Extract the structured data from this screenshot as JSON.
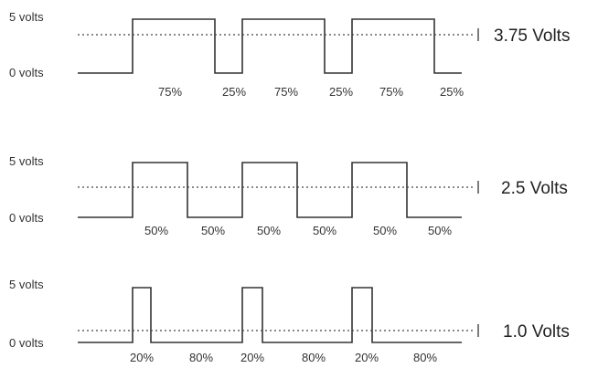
{
  "waveforms": [
    {
      "high_label": "5 volts",
      "low_label": "0 volts",
      "duty_cycle": 0.75,
      "pulses": 3,
      "average_label": "3.75 Volts",
      "percent_labels": [
        "75%",
        "25%",
        "75%",
        "25%",
        "75%",
        "25%"
      ]
    },
    {
      "high_label": "5 volts",
      "low_label": "0 volts",
      "duty_cycle": 0.5,
      "pulses": 3,
      "average_label": "2.5 Volts",
      "percent_labels": [
        "50%",
        "50%",
        "50%",
        "50%",
        "50%",
        "50%"
      ]
    },
    {
      "high_label": "5 volts",
      "low_label": "0 volts",
      "duty_cycle": 0.2,
      "pulses": 3,
      "average_label": "1.0 Volts",
      "percent_labels": [
        "20%",
        "80%",
        "20%",
        "80%",
        "20%",
        "80%"
      ]
    }
  ]
}
